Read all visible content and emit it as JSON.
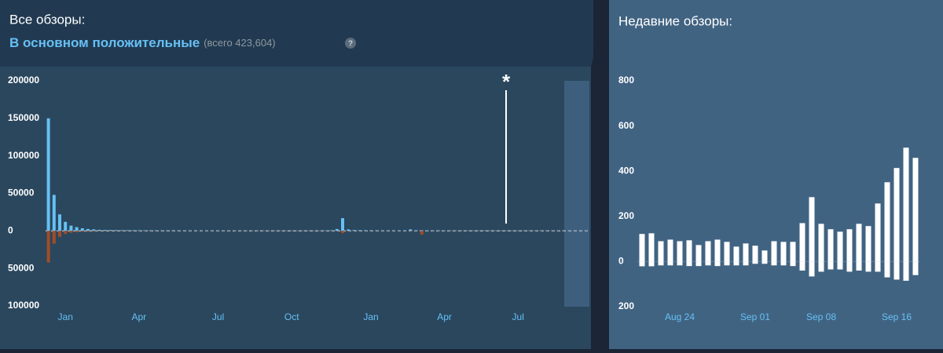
{
  "header": {
    "all_reviews_label": "Все обзоры:",
    "all_reviews_summary": "В основном положительные",
    "all_reviews_total": "(всего 423,604)",
    "help_icon": "?",
    "recent_reviews_label": "Недавние обзоры:"
  },
  "chart_data": [
    {
      "type": "bar",
      "annotation": "*",
      "categories": [
        null,
        null,
        null,
        "Jan",
        null,
        null,
        null,
        null,
        null,
        null,
        null,
        null,
        null,
        null,
        null,
        null,
        "Apr",
        null,
        null,
        null,
        null,
        null,
        null,
        null,
        null,
        null,
        null,
        null,
        null,
        null,
        "Jul",
        null,
        null,
        null,
        null,
        null,
        null,
        null,
        null,
        null,
        null,
        null,
        null,
        "Oct",
        null,
        null,
        null,
        null,
        null,
        null,
        null,
        null,
        null,
        null,
        null,
        null,
        null,
        "Jan",
        null,
        null,
        null,
        null,
        null,
        null,
        null,
        null,
        null,
        null,
        null,
        null,
        "Apr",
        null,
        null,
        null,
        null,
        null,
        null,
        null,
        null,
        null,
        null,
        null,
        null,
        "Jul",
        null,
        null,
        null,
        null,
        null,
        null,
        null,
        null,
        null,
        null,
        null,
        null
      ],
      "series": [
        {
          "color": "#66c0f4",
          "values": [
            150000,
            48000,
            22000,
            12000,
            7000,
            5000,
            3500,
            2500,
            2000,
            1500,
            1300,
            1200,
            1100,
            1000,
            1000,
            900,
            900,
            800,
            800,
            800,
            700,
            700,
            700,
            700,
            600,
            600,
            600,
            600,
            600,
            600,
            500,
            500,
            500,
            500,
            500,
            500,
            500,
            500,
            500,
            500,
            500,
            500,
            500,
            500,
            500,
            500,
            500,
            500,
            500,
            600,
            800,
            2500,
            17000,
            2000,
            1200,
            1000,
            900,
            800,
            800,
            700,
            700,
            700,
            700,
            900,
            2000,
            900,
            800,
            700,
            700,
            700,
            600,
            600,
            600,
            600,
            600,
            600,
            600,
            600,
            600,
            600,
            600,
            600,
            600,
            600,
            600,
            600,
            600,
            600,
            600,
            600,
            600,
            600,
            600,
            600,
            600,
            600
          ]
        },
        {
          "color": "#a34c25",
          "values": [
            -42000,
            -17000,
            -8000,
            -4000,
            -2500,
            -1800,
            -1200,
            -1000,
            -800,
            -700,
            -600,
            -600,
            -500,
            -500,
            -500,
            -400,
            -400,
            -400,
            -400,
            -400,
            -300,
            -300,
            -300,
            -300,
            -300,
            -300,
            -300,
            -300,
            -300,
            -300,
            -300,
            -300,
            -300,
            -300,
            -300,
            -300,
            -300,
            -300,
            -300,
            -300,
            -300,
            -300,
            -300,
            -300,
            -300,
            -300,
            -300,
            -300,
            -300,
            -300,
            -300,
            -500,
            -3000,
            -400,
            -300,
            -300,
            -300,
            -300,
            -300,
            -300,
            -300,
            -300,
            -300,
            -300,
            -500,
            -300,
            -5000,
            -300,
            -300,
            -300,
            -300,
            -300,
            -300,
            -300,
            -300,
            -300,
            -300,
            -300,
            -300,
            -300,
            -300,
            -300,
            -300,
            -300,
            -300,
            -300,
            -300,
            -300,
            -300,
            -300,
            -300,
            -300,
            -300,
            -300,
            -300,
            -300
          ]
        }
      ],
      "ylim": [
        -100000,
        200000
      ],
      "yticks": [
        200000,
        150000,
        100000,
        50000,
        0,
        {
          "value": -50000,
          "label": "50000"
        },
        {
          "value": -100000,
          "label": "100000"
        }
      ]
    },
    {
      "type": "bar",
      "categories": [
        null,
        null,
        null,
        null,
        "Aug 24",
        null,
        null,
        null,
        null,
        null,
        null,
        null,
        "Sep 01",
        null,
        null,
        null,
        null,
        null,
        null,
        "Sep 08",
        null,
        null,
        null,
        null,
        null,
        null,
        null,
        "Sep 16",
        null,
        null
      ],
      "series": [
        {
          "color": "#ffffff",
          "values": [
            122,
            125,
            90,
            97,
            90,
            94,
            73,
            90,
            97,
            87,
            66,
            80,
            70,
            49,
            90,
            87,
            87,
            170,
            285,
            167,
            143,
            132,
            143,
            167,
            157,
            257,
            351,
            414,
            504,
            459
          ]
        },
        {
          "color": "#ffffff",
          "values": [
            -21,
            -21,
            -17,
            -17,
            -17,
            -20,
            -20,
            -17,
            -20,
            -17,
            -17,
            -17,
            -10,
            -10,
            -17,
            -17,
            -20,
            -40,
            -66,
            -45,
            -35,
            -35,
            -45,
            -40,
            -45,
            -45,
            -70,
            -80,
            -85,
            -60
          ]
        }
      ],
      "ylim": [
        -200,
        800
      ],
      "yticks": [
        800,
        600,
        400,
        200,
        0,
        {
          "value": -200,
          "label": "200"
        }
      ]
    }
  ]
}
